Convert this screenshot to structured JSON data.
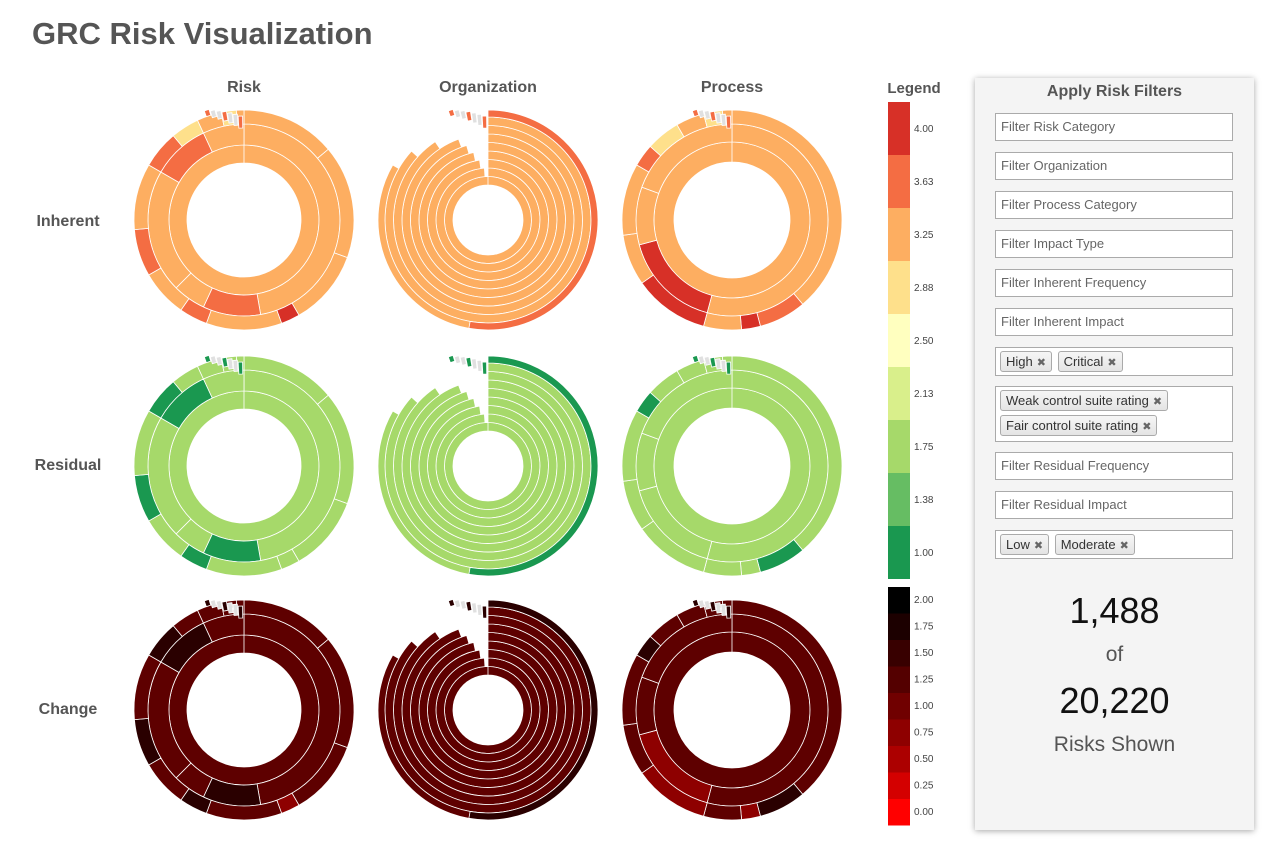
{
  "page": {
    "title": "GRC Risk Visualization"
  },
  "columns": [
    "Risk",
    "Organization",
    "Process"
  ],
  "rows": [
    "Inherent",
    "Residual",
    "Change"
  ],
  "legend": {
    "title": "Legend",
    "rating_scale": {
      "ticks": [
        "4.00",
        "3.63",
        "3.25",
        "2.88",
        "2.50",
        "2.13",
        "1.75",
        "1.38",
        "1.00"
      ],
      "colors": [
        "#d73027",
        "#f46d43",
        "#fdae61",
        "#fee08b",
        "#ffffbf",
        "#d9ef8b",
        "#a6d96a",
        "#66bd63",
        "#1a9850"
      ]
    },
    "change_scale": {
      "ticks": [
        "2.00",
        "1.75",
        "1.50",
        "1.25",
        "1.00",
        "0.75",
        "0.50",
        "0.25",
        "0.00"
      ],
      "colors": [
        "#000000",
        "#1c0000",
        "#380000",
        "#540000",
        "#700000",
        "#8e0000",
        "#ac0000",
        "#d40000",
        "#ff0000"
      ]
    }
  },
  "sunburst_colors": {
    "inherent_base": "#fdae61",
    "inherent_mid": "#f46d43",
    "inherent_high": "#d73027",
    "inherent_low": "#fee08b",
    "residual_base": "#a6d96a",
    "residual_dark": "#1a9850",
    "change_base": "#5e0000",
    "change_dark": "#2a0000",
    "change_light": "#8e0000",
    "separator": "#ffffff",
    "tiny": "#e0e0e0"
  },
  "filters": {
    "title": "Apply Risk Filters",
    "risk_category": {
      "placeholder": "Filter Risk Category"
    },
    "organization": {
      "placeholder": "Filter Organization"
    },
    "process_category": {
      "placeholder": "Filter Process Category"
    },
    "impact_type": {
      "placeholder": "Filter Impact Type"
    },
    "inherent_frequency": {
      "placeholder": "Filter Inherent Frequency"
    },
    "inherent_impact": {
      "placeholder": "Filter Inherent Impact"
    },
    "inherent_impact_tags": [
      "High",
      "Critical"
    ],
    "control_rating_tags": [
      "Weak control suite rating",
      "Fair control suite rating"
    ],
    "residual_frequency": {
      "placeholder": "Filter Residual Frequency"
    },
    "residual_impact": {
      "placeholder": "Filter Residual Impact"
    },
    "residual_impact_tags": [
      "Low",
      "Moderate"
    ],
    "tag_remove_glyph": "✖"
  },
  "summary": {
    "shown": "1,488",
    "of_label": "of",
    "total": "20,220",
    "caption": "Risks Shown"
  }
}
